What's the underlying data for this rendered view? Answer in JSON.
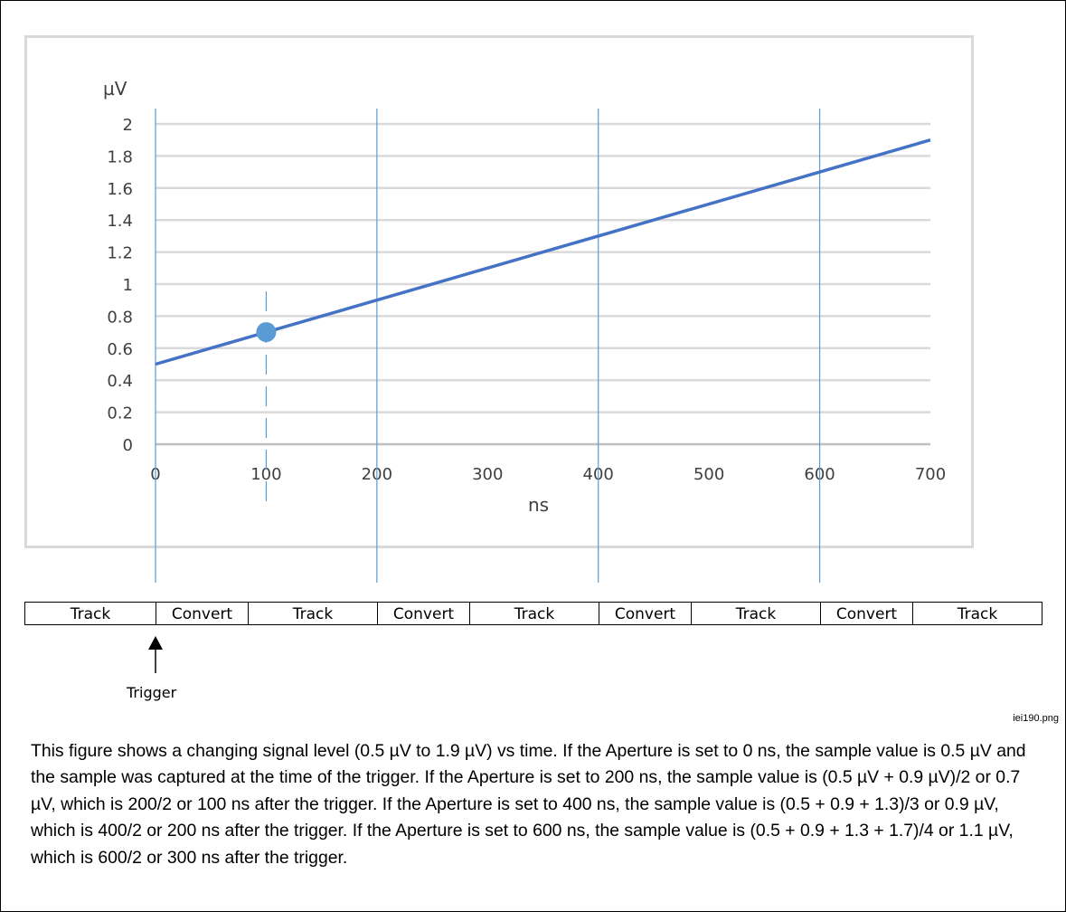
{
  "chart_data": {
    "type": "line",
    "ylabel": "µV",
    "xlabel": "ns",
    "xlim": [
      0,
      700
    ],
    "ylim": [
      0,
      2
    ],
    "xticks": [
      0,
      100,
      200,
      300,
      400,
      500,
      600,
      700
    ],
    "yticks": [
      0,
      0.2,
      0.4,
      0.6,
      0.8,
      1,
      1.2,
      1.4,
      1.6,
      1.8,
      2
    ],
    "ytick_labels": [
      "0",
      "0.2",
      "0.4",
      "0.6",
      "0.8",
      "1",
      "1.2",
      "1.4",
      "1.6",
      "1.8",
      "2"
    ],
    "grid": true,
    "series": [
      {
        "x": [
          0,
          700
        ],
        "y": [
          0.5,
          1.9
        ],
        "color": "#4472c4"
      }
    ],
    "marker": {
      "x": 100,
      "y": 0.7,
      "color": "#5b9bd5"
    },
    "dashed_line_x": 100,
    "vertical_lines_x": [
      0,
      200,
      400,
      600
    ],
    "line_color": "#4472c4",
    "grid_color": "#d9d9d9"
  },
  "phases": [
    {
      "label": "Track"
    },
    {
      "label": "Convert"
    },
    {
      "label": "Track"
    },
    {
      "label": "Convert"
    },
    {
      "label": "Track"
    },
    {
      "label": "Convert"
    },
    {
      "label": "Track"
    },
    {
      "label": "Convert"
    },
    {
      "label": "Track"
    }
  ],
  "trigger": {
    "label": "Trigger"
  },
  "filename": "iei190.png",
  "caption": "This figure shows a changing signal level (0.5 µV to 1.9 µV) vs time. If the Aperture is set to 0 ns, the sample value is 0.5 µV and the sample was captured at the time of the trigger. If the Aperture is set to 200 ns, the sample value is (0.5 µV + 0.9 µV)/2 or 0.7 µV, which is 200/2 or 100 ns after the trigger. If the Aperture is set to 400 ns, the sample value is (0.5 + 0.9 + 1.3)/3 or 0.9 µV, which is 400/2 or 200 ns after the trigger. If the Aperture is set to 600 ns, the sample value is (0.5 + 0.9 + 1.3 + 1.7)/4 or 1.1 µV, which is 600/2 or 300 ns after the trigger."
}
